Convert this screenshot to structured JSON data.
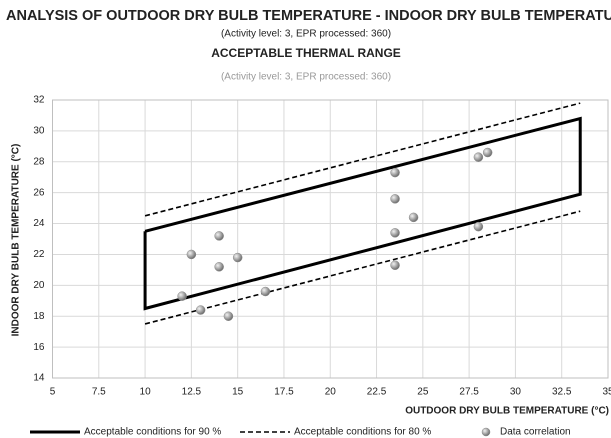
{
  "chart_data": {
    "type": "scatter",
    "title": "ANALYSIS OF OUTDOOR DRY BULB TEMPERATURE - INDOOR DRY BULB TEMPERATURE",
    "subtitle": "(Activity level: 3, EPR processed: 360)",
    "chart_title": "ACCEPTABLE THERMAL RANGE",
    "chart_subtitle": "(Activity level: 3, EPR processed: 360)",
    "xlabel": "OUTDOOR DRY BULB TEMPERATURE (°C)",
    "ylabel": "INDOOR DRY BULB TEMPERATURE (°C)",
    "xlim": [
      5,
      35
    ],
    "xticks": [
      5,
      7.5,
      10,
      12.5,
      15,
      17.5,
      20,
      22.5,
      25,
      27.5,
      30,
      32.5,
      35
    ],
    "ylim": [
      14,
      32
    ],
    "yticks": [
      14,
      16,
      18,
      20,
      22,
      24,
      26,
      28,
      30,
      32
    ],
    "grid": true,
    "series": [
      {
        "name": "Acceptable conditions for 90 %",
        "kind": "line",
        "dash": false,
        "color": "#000000",
        "x": [
          10,
          10,
          33.5,
          33.5,
          10
        ],
        "y": [
          23.5,
          18.5,
          25.9,
          30.8,
          23.5
        ]
      },
      {
        "name": "Acceptable conditions for 80 %",
        "kind": "line",
        "dash": true,
        "color": "#000000",
        "x": [
          10,
          33.5,
          null,
          10,
          33.5
        ],
        "y": [
          24.5,
          31.8,
          null,
          17.5,
          24.8
        ]
      },
      {
        "name": "Data correlation",
        "kind": "scatter",
        "color": "#8c8c8c",
        "x": [
          12,
          12.5,
          13,
          14,
          14,
          14.5,
          15,
          16.5,
          23.5,
          23.5,
          23.5,
          23.5,
          24.5,
          28,
          28.5,
          28
        ],
        "y": [
          19.3,
          22,
          18.4,
          23.2,
          21.2,
          18,
          21.8,
          19.6,
          27.3,
          25.6,
          23.4,
          21.3,
          24.4,
          28.3,
          28.6,
          23.8
        ]
      }
    ]
  }
}
